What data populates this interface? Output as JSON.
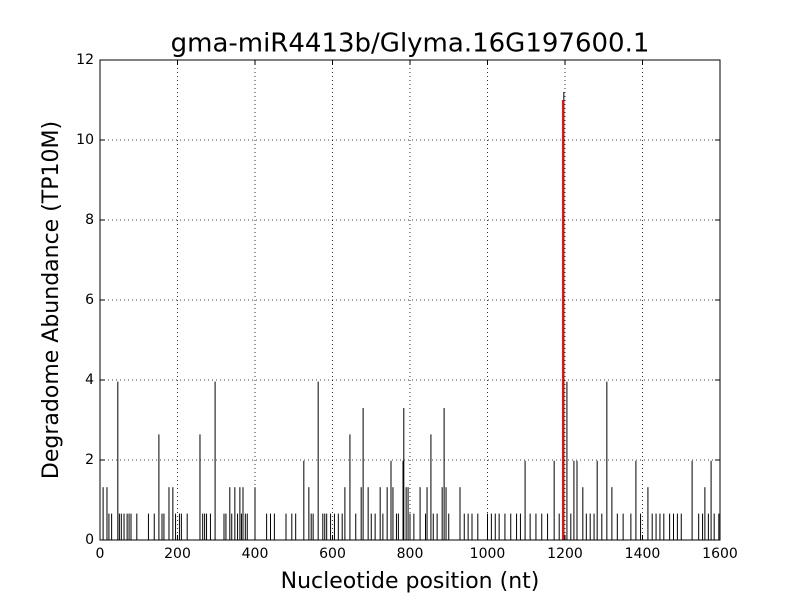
{
  "chart_data": {
    "type": "stem",
    "title": "gma-miR4413b/Glyma.16G197600.1",
    "x_label": "Nucleotide position (nt)",
    "y_label": "Degradome Abundance (TP10M)",
    "xlim": [
      0,
      1600
    ],
    "xticks": [
      0,
      200,
      400,
      600,
      800,
      1000,
      1200,
      1400,
      1600
    ],
    "ylim": [
      0,
      12
    ],
    "yticks": [
      0,
      2,
      4,
      6,
      8,
      10,
      12
    ],
    "grid": true,
    "series": [
      {
        "color": "#000000",
        "x": [
          8,
          18,
          23,
          30,
          46,
          50,
          55,
          62,
          70,
          75,
          80,
          95,
          125,
          140,
          152,
          160,
          165,
          178,
          188,
          195,
          205,
          210,
          225,
          258,
          265,
          270,
          275,
          285,
          297,
          320,
          325,
          335,
          340,
          348,
          355,
          361,
          365,
          369,
          375,
          380,
          400,
          430,
          440,
          450,
          480,
          495,
          505,
          526,
          539,
          545,
          550,
          563,
          575,
          580,
          585,
          595,
          605,
          615,
          625,
          632,
          645,
          660,
          674,
          679,
          692,
          700,
          710,
          723,
          730,
          741,
          751,
          756,
          765,
          770,
          782,
          784,
          790,
          795,
          800,
          810,
          826,
          840,
          844,
          854,
          860,
          870,
          883,
          888,
          893,
          900,
          929,
          940,
          950,
          960,
          975,
          1000,
          1010,
          1020,
          1030,
          1045,
          1060,
          1075,
          1085,
          1097,
          1110,
          1125,
          1140,
          1155,
          1172,
          1185,
          1197,
          1205,
          1215,
          1223,
          1231,
          1246,
          1255,
          1265,
          1275,
          1283,
          1295,
          1308,
          1321,
          1335,
          1350,
          1370,
          1383,
          1395,
          1414,
          1425,
          1435,
          1445,
          1455,
          1470,
          1480,
          1490,
          1500,
          1528,
          1545,
          1555,
          1561,
          1570,
          1577,
          1585,
          1597
        ],
        "values": [
          1.32,
          1.32,
          0.66,
          0.66,
          3.96,
          0.66,
          0.66,
          0.66,
          0.66,
          0.66,
          0.66,
          0.66,
          0.66,
          0.66,
          2.64,
          0.66,
          0.66,
          1.32,
          1.32,
          0.66,
          0.66,
          0.66,
          0.66,
          2.64,
          0.66,
          0.66,
          0.66,
          0.66,
          3.96,
          0.66,
          0.66,
          1.32,
          0.66,
          1.32,
          0.66,
          1.32,
          0.66,
          1.32,
          0.66,
          0.66,
          1.32,
          0.66,
          0.66,
          0.66,
          0.66,
          0.66,
          0.66,
          1.98,
          1.32,
          0.66,
          0.66,
          3.96,
          0.66,
          0.66,
          0.66,
          0.66,
          0.66,
          0.66,
          0.66,
          1.32,
          2.64,
          0.66,
          1.32,
          3.3,
          1.32,
          0.66,
          0.66,
          1.32,
          0.66,
          1.32,
          1.98,
          1.32,
          0.66,
          0.66,
          1.98,
          3.3,
          1.32,
          1.32,
          0.66,
          0.66,
          1.32,
          0.66,
          1.32,
          2.64,
          0.66,
          0.66,
          1.32,
          3.3,
          1.32,
          0.66,
          1.32,
          0.66,
          0.66,
          0.66,
          0.66,
          0.66,
          0.66,
          0.66,
          0.66,
          0.66,
          0.66,
          0.66,
          0.66,
          1.98,
          0.66,
          0.66,
          0.66,
          0.66,
          1.98,
          0.66,
          11.2,
          3.96,
          0.66,
          1.98,
          1.98,
          1.32,
          0.66,
          0.66,
          0.66,
          1.98,
          0.66,
          3.96,
          1.32,
          0.66,
          0.66,
          0.66,
          1.98,
          0.66,
          1.32,
          0.66,
          0.66,
          0.66,
          0.66,
          0.66,
          0.66,
          0.66,
          0.66,
          1.98,
          0.66,
          0.66,
          1.32,
          0.66,
          1.98,
          0.66,
          0.66
        ]
      },
      {
        "color": "#ff0000",
        "x": [
          1195
        ],
        "values": [
          11.0
        ]
      }
    ]
  }
}
